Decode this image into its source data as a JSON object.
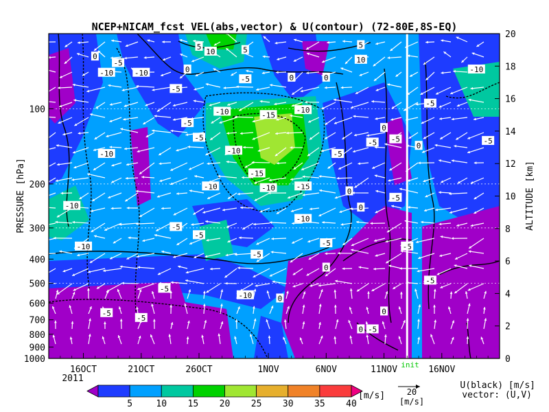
{
  "chart_data": {
    "type": "heatmap",
    "title": "NCEP+NICAM_fcst VEL(abs,vector) & U(contour)  (72-80E,8S-EQ)",
    "ylabel_left": "PRESSURE [hPa]",
    "ylabel_right": "ALTITUDE [km]",
    "x_ticks": [
      "16OCT",
      "21OCT",
      "26OCT",
      "1NOV",
      "6NOV",
      "11NOV",
      "16NOV"
    ],
    "year_label": "2011",
    "x_range": [
      "2011-10-13",
      "2011-11-21"
    ],
    "pressure_ticks": [
      1000,
      900,
      800,
      700,
      600,
      500,
      400,
      300,
      200,
      100
    ],
    "pressure_axis": "log",
    "altitude_ticks": [
      0,
      2,
      4,
      6,
      8,
      10,
      12,
      14,
      16,
      18,
      20
    ],
    "altitude_range_km": [
      0,
      20
    ],
    "init_label": "init",
    "init_date": "2011-11-13",
    "colorbar": {
      "levels": [
        5,
        10,
        15,
        20,
        25,
        30,
        35,
        40
      ],
      "unit": "[m/s]",
      "colors": [
        "#a000c8",
        "#1e3cff",
        "#00a0ff",
        "#00c8a0",
        "#00d200",
        "#a0e632",
        "#e6af2d",
        "#f08228",
        "#fa3c3c",
        "#f00082"
      ]
    },
    "vector_reference": {
      "value": "20",
      "unit": "[m/s]"
    },
    "legend_text": [
      "U(black) [m/s]",
      "vector: (U,V)"
    ],
    "contour_labels": [
      {
        "text": "0",
        "date": "2011-10-17",
        "km": 18.6
      },
      {
        "text": "-5",
        "date": "2011-10-19",
        "km": 18.2
      },
      {
        "text": "-10",
        "date": "2011-10-21",
        "km": 17.6
      },
      {
        "text": "-10",
        "date": "2011-10-18",
        "km": 17.6
      },
      {
        "text": "0",
        "date": "2011-10-25",
        "km": 17.8
      },
      {
        "text": "-5",
        "date": "2011-10-24",
        "km": 16.6
      },
      {
        "text": "5",
        "date": "2011-10-26",
        "km": 19.2
      },
      {
        "text": "10",
        "date": "2011-10-27",
        "km": 18.9
      },
      {
        "text": "5",
        "date": "2011-10-30",
        "km": 19.0
      },
      {
        "text": "-5",
        "date": "2011-10-30",
        "km": 17.2
      },
      {
        "text": "0",
        "date": "2011-11-03",
        "km": 17.3
      },
      {
        "text": "0",
        "date": "2011-11-06",
        "km": 17.3
      },
      {
        "text": "10",
        "date": "2011-11-09",
        "km": 18.4
      },
      {
        "text": "5",
        "date": "2011-11-09",
        "km": 19.3
      },
      {
        "text": "-10",
        "date": "2011-10-28",
        "km": 15.2
      },
      {
        "text": "-15",
        "date": "2011-11-01",
        "km": 15.0
      },
      {
        "text": "-10",
        "date": "2011-11-04",
        "km": 15.3
      },
      {
        "text": "-5",
        "date": "2011-10-25",
        "km": 14.5
      },
      {
        "text": "-5",
        "date": "2011-10-26",
        "km": 13.6
      },
      {
        "text": "-10",
        "date": "2011-10-29",
        "km": 12.8
      },
      {
        "text": "-10",
        "date": "2011-10-18",
        "km": 12.6
      },
      {
        "text": "-15",
        "date": "2011-10-31",
        "km": 11.4
      },
      {
        "text": "-5",
        "date": "2011-11-07",
        "km": 12.6
      },
      {
        "text": "-5",
        "date": "2011-11-10",
        "km": 13.3
      },
      {
        "text": "-5",
        "date": "2011-11-12",
        "km": 13.5
      },
      {
        "text": "0",
        "date": "2011-11-11",
        "km": 14.2
      },
      {
        "text": "0",
        "date": "2011-11-14",
        "km": 13.1
      },
      {
        "text": "-5",
        "date": "2011-11-15",
        "km": 15.7
      },
      {
        "text": "-10",
        "date": "2011-11-19",
        "km": 17.8
      },
      {
        "text": "-5",
        "date": "2011-11-20",
        "km": 13.4
      },
      {
        "text": "-10",
        "date": "2011-10-27",
        "km": 10.6
      },
      {
        "text": "-10",
        "date": "2011-11-01",
        "km": 10.5
      },
      {
        "text": "-15",
        "date": "2011-11-04",
        "km": 10.6
      },
      {
        "text": "0",
        "date": "2011-11-08",
        "km": 10.3
      },
      {
        "text": "-5",
        "date": "2011-11-12",
        "km": 9.9
      },
      {
        "text": "0",
        "date": "2011-11-09",
        "km": 9.3
      },
      {
        "text": "-10",
        "date": "2011-10-15",
        "km": 9.4
      },
      {
        "text": "-5",
        "date": "2011-10-24",
        "km": 8.1
      },
      {
        "text": "-5",
        "date": "2011-10-26",
        "km": 7.6
      },
      {
        "text": "-10",
        "date": "2011-11-04",
        "km": 8.6
      },
      {
        "text": "-5",
        "date": "2011-11-06",
        "km": 7.1
      },
      {
        "text": "-10",
        "date": "2011-10-16",
        "km": 6.9
      },
      {
        "text": "-5",
        "date": "2011-10-31",
        "km": 6.4
      },
      {
        "text": "-5",
        "date": "2011-11-13",
        "km": 6.9
      },
      {
        "text": "0",
        "date": "2011-11-06",
        "km": 5.6
      },
      {
        "text": "-5",
        "date": "2011-10-23",
        "km": 4.3
      },
      {
        "text": "-10",
        "date": "2011-10-30",
        "km": 3.9
      },
      {
        "text": "0",
        "date": "2011-11-02",
        "km": 3.7
      },
      {
        "text": "-5",
        "date": "2011-11-15",
        "km": 4.8
      },
      {
        "text": "-5",
        "date": "2011-10-18",
        "km": 2.8
      },
      {
        "text": "-5",
        "date": "2011-10-21",
        "km": 2.5
      },
      {
        "text": "0",
        "date": "2011-11-11",
        "km": 2.9
      },
      {
        "text": "0",
        "date": "2011-11-09",
        "km": 1.8
      },
      {
        "text": "-5",
        "date": "2011-11-10",
        "km": 1.8
      }
    ]
  }
}
